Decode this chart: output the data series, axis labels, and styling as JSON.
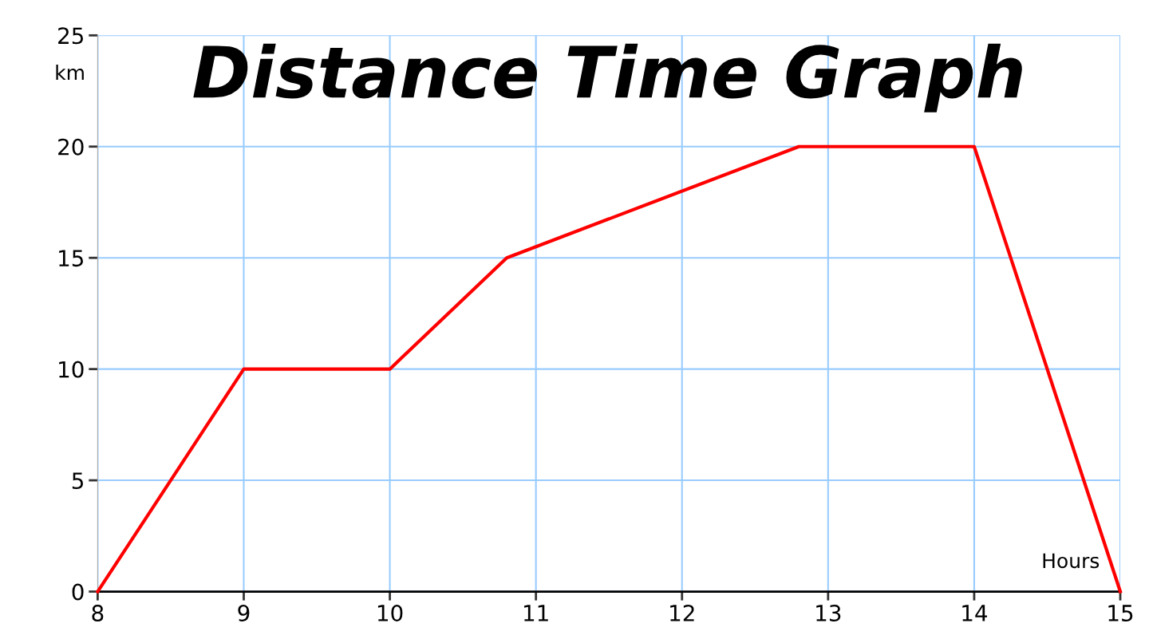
{
  "chart_data": {
    "type": "line",
    "title": "Distance Time Graph",
    "xlabel": "Hours",
    "ylabel": "km",
    "x": [
      8,
      9,
      10,
      10.8,
      12.8,
      14,
      15
    ],
    "series": [
      {
        "color": "#ff0000",
        "values": [
          0,
          10,
          10,
          15,
          20,
          20,
          0
        ]
      }
    ],
    "xlim": [
      8,
      15
    ],
    "xticks": [
      8,
      9,
      10,
      11,
      12,
      13,
      14,
      15
    ],
    "ylim": [
      0,
      25
    ],
    "yticks": [
      0,
      5,
      10,
      15,
      20,
      25
    ],
    "grid": true,
    "marker": "none",
    "line_style": "solid",
    "legend": false
  }
}
